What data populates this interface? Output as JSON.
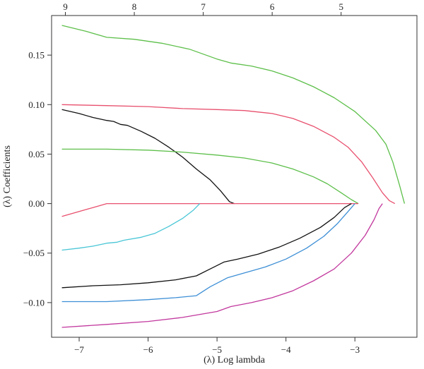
{
  "chart_data": {
    "type": "line",
    "title": "",
    "xlabel": "(λ) Log lambda",
    "ylabel": "(λ) Coefficients",
    "xlim": [
      -7.4,
      -2.1
    ],
    "ylim": [
      -0.135,
      0.19
    ],
    "x_ticks": [
      -7,
      -6,
      -5,
      -4,
      -3
    ],
    "x_tick_labels": [
      "−7",
      "−6",
      "−5",
      "−4",
      "−3"
    ],
    "y_ticks": [
      0.15,
      0.1,
      0.05,
      0.0,
      -0.05,
      -0.1
    ],
    "y_tick_labels": [
      "0.15",
      "0.10",
      "0.05",
      "0.00",
      "−0.05",
      "−0.10"
    ],
    "top_axis": {
      "positions": [
        -7.2,
        -6.2,
        -5.2,
        -4.2,
        -3.2
      ],
      "labels": [
        "9",
        "8",
        "7",
        "6",
        "5"
      ]
    },
    "grid": false,
    "series": [
      {
        "color": "#5dbf4a",
        "points": [
          [
            -7.25,
            0.18
          ],
          [
            -6.9,
            0.174
          ],
          [
            -6.6,
            0.168
          ],
          [
            -6.2,
            0.166
          ],
          [
            -5.8,
            0.162
          ],
          [
            -5.4,
            0.156
          ],
          [
            -5.0,
            0.146
          ],
          [
            -4.8,
            0.142
          ],
          [
            -4.5,
            0.139
          ],
          [
            -4.2,
            0.134
          ],
          [
            -3.9,
            0.127
          ],
          [
            -3.6,
            0.118
          ],
          [
            -3.3,
            0.107
          ],
          [
            -3.0,
            0.093
          ],
          [
            -2.7,
            0.074
          ],
          [
            -2.55,
            0.06
          ],
          [
            -2.45,
            0.042
          ],
          [
            -2.35,
            0.018
          ],
          [
            -2.28,
            0.0
          ]
        ]
      },
      {
        "color": "#e8506e",
        "points": [
          [
            -7.25,
            0.1
          ],
          [
            -6.6,
            0.099
          ],
          [
            -6.0,
            0.098
          ],
          [
            -5.5,
            0.096
          ],
          [
            -5.0,
            0.095
          ],
          [
            -4.6,
            0.094
          ],
          [
            -4.2,
            0.091
          ],
          [
            -3.9,
            0.086
          ],
          [
            -3.6,
            0.078
          ],
          [
            -3.3,
            0.067
          ],
          [
            -3.1,
            0.057
          ],
          [
            -2.9,
            0.042
          ],
          [
            -2.75,
            0.027
          ],
          [
            -2.6,
            0.011
          ],
          [
            -2.5,
            0.003
          ],
          [
            -2.42,
            0.0
          ]
        ]
      },
      {
        "color": "#111111",
        "points": [
          [
            -7.25,
            0.095
          ],
          [
            -7.0,
            0.091
          ],
          [
            -6.8,
            0.087
          ],
          [
            -6.6,
            0.084
          ],
          [
            -6.5,
            0.083
          ],
          [
            -6.4,
            0.08
          ],
          [
            -6.3,
            0.079
          ],
          [
            -6.1,
            0.073
          ],
          [
            -5.9,
            0.066
          ],
          [
            -5.7,
            0.057
          ],
          [
            -5.5,
            0.047
          ],
          [
            -5.3,
            0.035
          ],
          [
            -5.1,
            0.024
          ],
          [
            -4.95,
            0.013
          ],
          [
            -4.82,
            0.002
          ],
          [
            -4.75,
            0.0
          ]
        ]
      },
      {
        "color": "#5dbf4a",
        "points": [
          [
            -7.25,
            0.055
          ],
          [
            -6.6,
            0.055
          ],
          [
            -6.0,
            0.054
          ],
          [
            -5.5,
            0.052
          ],
          [
            -5.0,
            0.049
          ],
          [
            -4.6,
            0.046
          ],
          [
            -4.2,
            0.041
          ],
          [
            -3.9,
            0.035
          ],
          [
            -3.6,
            0.027
          ],
          [
            -3.4,
            0.02
          ],
          [
            -3.2,
            0.011
          ],
          [
            -3.05,
            0.004
          ],
          [
            -2.95,
            0.0
          ]
        ]
      },
      {
        "color": "#e8506e",
        "points": [
          [
            -7.25,
            -0.013
          ],
          [
            -7.0,
            -0.008
          ],
          [
            -6.8,
            -0.004
          ],
          [
            -6.6,
            0.0
          ],
          [
            -4.75,
            0.0
          ],
          [
            -2.95,
            0.0
          ]
        ]
      },
      {
        "color": "#49c6d6",
        "points": [
          [
            -7.25,
            -0.047
          ],
          [
            -7.0,
            -0.045
          ],
          [
            -6.8,
            -0.043
          ],
          [
            -6.6,
            -0.04
          ],
          [
            -6.45,
            -0.039
          ],
          [
            -6.35,
            -0.037
          ],
          [
            -6.1,
            -0.034
          ],
          [
            -5.9,
            -0.03
          ],
          [
            -5.7,
            -0.023
          ],
          [
            -5.5,
            -0.015
          ],
          [
            -5.35,
            -0.007
          ],
          [
            -5.25,
            0.0
          ]
        ]
      },
      {
        "color": "#111111",
        "points": [
          [
            -7.25,
            -0.085
          ],
          [
            -6.8,
            -0.083
          ],
          [
            -6.4,
            -0.082
          ],
          [
            -6.0,
            -0.08
          ],
          [
            -5.6,
            -0.077
          ],
          [
            -5.3,
            -0.073
          ],
          [
            -5.1,
            -0.066
          ],
          [
            -4.9,
            -0.059
          ],
          [
            -4.7,
            -0.056
          ],
          [
            -4.4,
            -0.051
          ],
          [
            -4.1,
            -0.044
          ],
          [
            -3.8,
            -0.035
          ],
          [
            -3.5,
            -0.024
          ],
          [
            -3.3,
            -0.014
          ],
          [
            -3.15,
            -0.004
          ],
          [
            -3.05,
            0.0
          ]
        ]
      },
      {
        "color": "#3d8fd6",
        "points": [
          [
            -7.25,
            -0.099
          ],
          [
            -6.6,
            -0.099
          ],
          [
            -6.0,
            -0.097
          ],
          [
            -5.6,
            -0.095
          ],
          [
            -5.3,
            -0.093
          ],
          [
            -5.1,
            -0.084
          ],
          [
            -4.85,
            -0.075
          ],
          [
            -4.6,
            -0.07
          ],
          [
            -4.3,
            -0.064
          ],
          [
            -4.0,
            -0.056
          ],
          [
            -3.7,
            -0.045
          ],
          [
            -3.45,
            -0.033
          ],
          [
            -3.25,
            -0.02
          ],
          [
            -3.1,
            -0.008
          ],
          [
            -3.0,
            0.0
          ]
        ]
      },
      {
        "color": "#c2389e",
        "points": [
          [
            -7.25,
            -0.125
          ],
          [
            -6.6,
            -0.122
          ],
          [
            -6.0,
            -0.119
          ],
          [
            -5.5,
            -0.115
          ],
          [
            -5.0,
            -0.109
          ],
          [
            -4.8,
            -0.104
          ],
          [
            -4.5,
            -0.1
          ],
          [
            -4.2,
            -0.095
          ],
          [
            -3.9,
            -0.088
          ],
          [
            -3.6,
            -0.078
          ],
          [
            -3.3,
            -0.066
          ],
          [
            -3.05,
            -0.05
          ],
          [
            -2.85,
            -0.032
          ],
          [
            -2.72,
            -0.016
          ],
          [
            -2.65,
            -0.005
          ],
          [
            -2.6,
            0.0
          ]
        ]
      }
    ]
  }
}
